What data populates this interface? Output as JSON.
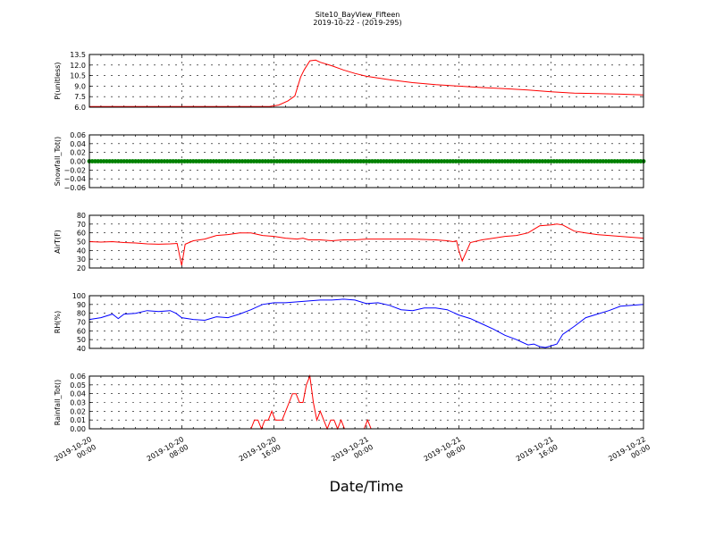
{
  "title_line1": "Site10_BayView_Fifteen",
  "title_line2": "2019-10-22 - (2019-295)",
  "xlabel": "Date/Time",
  "x_ticks": [
    {
      "t": 0,
      "l1": "2019-10-20",
      "l2": "00:00"
    },
    {
      "t": 8,
      "l1": "2019-10-20",
      "l2": "08:00"
    },
    {
      "t": 16,
      "l1": "2019-10-20",
      "l2": "16:00"
    },
    {
      "t": 24,
      "l1": "2019-10-21",
      "l2": "00:00"
    },
    {
      "t": 32,
      "l1": "2019-10-21",
      "l2": "08:00"
    },
    {
      "t": 40,
      "l1": "2019-10-21",
      "l2": "16:00"
    },
    {
      "t": 48,
      "l1": "2019-10-22",
      "l2": "00:00"
    }
  ],
  "chart_data": [
    {
      "type": "line",
      "ylabel": "P(unitless)",
      "ylim": [
        6.0,
        13.5
      ],
      "yticks": [
        "6.0",
        "7.5",
        "9.0",
        "10.5",
        "12.0",
        "13.5"
      ],
      "ytick_values": [
        6.0,
        7.5,
        9.0,
        10.5,
        12.0,
        13.5
      ],
      "color": "#ff0000",
      "x": [
        0,
        10,
        15,
        15.6,
        16.4,
        17.2,
        17.8,
        18.3,
        18.6,
        19.1,
        19.6,
        20,
        21,
        22,
        23,
        24,
        26,
        28,
        30,
        32,
        34,
        36,
        38,
        40,
        42,
        44,
        46,
        48
      ],
      "y": [
        6.1,
        6.1,
        6.1,
        6.1,
        6.3,
        6.9,
        7.6,
        10.3,
        11.3,
        12.6,
        12.7,
        12.4,
        11.9,
        11.3,
        10.8,
        10.4,
        9.9,
        9.5,
        9.2,
        9.0,
        8.8,
        8.65,
        8.45,
        8.2,
        8.0,
        7.95,
        7.85,
        7.75
      ]
    },
    {
      "type": "scatter",
      "ylabel": "Snowfall_Tot()",
      "ylim": [
        -0.06,
        0.06
      ],
      "yticks": [
        "−0.06",
        "−0.04",
        "−0.02",
        "0.00",
        "0.02",
        "0.04",
        "0.06"
      ],
      "ytick_values": [
        -0.06,
        -0.04,
        -0.02,
        0,
        0.02,
        0.04,
        0.06
      ],
      "color": "#008000",
      "constant_value": 0.0
    },
    {
      "type": "line",
      "ylabel": "AirT(F)",
      "ylim": [
        20,
        80
      ],
      "yticks": [
        "20",
        "30",
        "40",
        "50",
        "60",
        "70",
        "80"
      ],
      "ytick_values": [
        20,
        30,
        40,
        50,
        60,
        70,
        80
      ],
      "color": "#ff0000",
      "x": [
        0,
        1,
        2,
        3,
        4,
        5,
        6,
        7,
        7.6,
        7.8,
        8.0,
        8.3,
        9,
        10,
        11,
        12,
        13,
        14,
        15,
        16,
        17,
        18,
        18.5,
        19,
        20,
        21,
        22,
        23,
        24,
        26,
        28,
        30,
        31,
        31.5,
        31.8,
        32.0,
        32.3,
        33,
        34,
        35,
        36,
        37,
        38,
        38.5,
        39,
        40,
        40.5,
        41,
        42,
        43,
        44,
        45,
        46,
        47,
        48
      ],
      "y": [
        50,
        49.5,
        50,
        49,
        48.5,
        47.5,
        47,
        47.5,
        48,
        35,
        23,
        47,
        51,
        53,
        57,
        58,
        60,
        60,
        57,
        56,
        54,
        53,
        54,
        52,
        52,
        51,
        52,
        52,
        53,
        53,
        53,
        52,
        51,
        50,
        51,
        40,
        28,
        49,
        52,
        54,
        56,
        57,
        60,
        64,
        68,
        69,
        70,
        69,
        62,
        60,
        58,
        57,
        56,
        55,
        54
      ]
    },
    {
      "type": "line",
      "ylabel": "RH(%)",
      "ylim": [
        40,
        100
      ],
      "yticks": [
        "40",
        "50",
        "60",
        "70",
        "80",
        "90",
        "100"
      ],
      "ytick_values": [
        40,
        50,
        60,
        70,
        80,
        90,
        100
      ],
      "color": "#0000ff",
      "x": [
        0,
        1,
        2,
        2.5,
        3,
        4,
        5,
        6,
        7,
        7.5,
        8,
        9,
        10,
        11,
        12,
        13,
        14,
        15,
        16,
        17,
        18,
        19,
        20,
        21,
        22,
        23,
        24,
        25,
        26,
        27,
        28,
        29,
        30,
        31,
        32,
        33,
        34,
        35,
        36,
        37,
        38,
        38.5,
        39,
        39.5,
        40,
        40.5,
        41,
        42,
        43,
        44,
        45,
        46,
        47,
        48
      ],
      "y": [
        73,
        75,
        79,
        74,
        79,
        80,
        83,
        82,
        83,
        80,
        75,
        73,
        72,
        76,
        75,
        79,
        84,
        90,
        92,
        92,
        93,
        94,
        95,
        95,
        96,
        95,
        91,
        92,
        89,
        84,
        83,
        86,
        86,
        84,
        78,
        74,
        68,
        62,
        55,
        50,
        44,
        45,
        42,
        41,
        43,
        45,
        56,
        65,
        75,
        79,
        83,
        88,
        89,
        90
      ]
    },
    {
      "type": "line",
      "ylabel": "Rainfall_Tot()",
      "ylim": [
        0.0,
        0.06
      ],
      "yticks": [
        "0.00",
        "0.01",
        "0.02",
        "0.03",
        "0.04",
        "0.05",
        "0.06"
      ],
      "ytick_values": [
        0,
        0.01,
        0.02,
        0.03,
        0.04,
        0.05,
        0.06
      ],
      "color": "#ff0000",
      "x": [
        0,
        14.0,
        14.3,
        14.6,
        14.9,
        15.2,
        15.5,
        15.8,
        16.1,
        16.4,
        16.7,
        17.0,
        17.3,
        17.6,
        17.9,
        18.2,
        18.5,
        18.8,
        19.1,
        19.4,
        19.7,
        20.0,
        20.3,
        20.6,
        20.9,
        21.2,
        21.5,
        21.8,
        22.1,
        22.4,
        23.5,
        23.8,
        24.1,
        24.4,
        48
      ],
      "y": [
        0,
        0,
        0.01,
        0.01,
        0,
        0.01,
        0.01,
        0.02,
        0.01,
        0.01,
        0.01,
        0.02,
        0.03,
        0.04,
        0.04,
        0.03,
        0.03,
        0.05,
        0.06,
        0.03,
        0.01,
        0.02,
        0.01,
        0,
        0.01,
        0.01,
        0,
        0.01,
        0,
        0,
        0,
        0,
        0.01,
        0,
        0
      ]
    }
  ]
}
